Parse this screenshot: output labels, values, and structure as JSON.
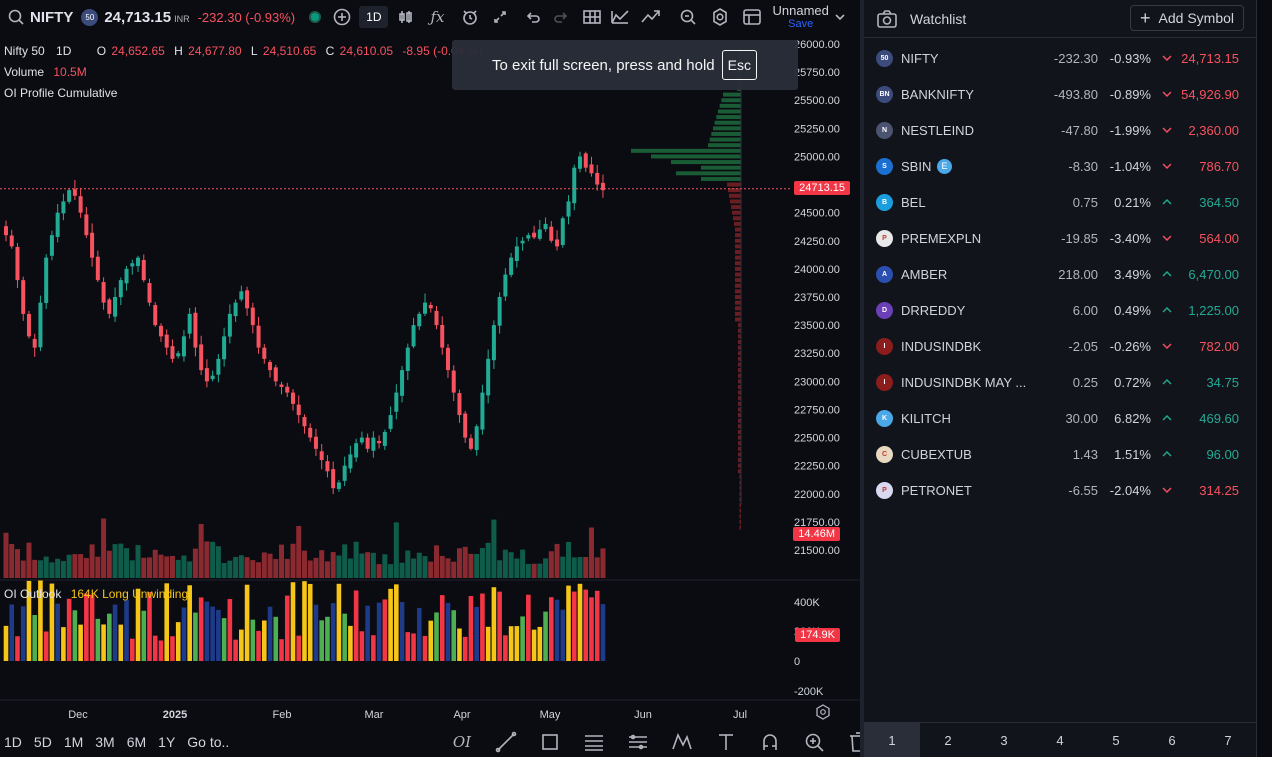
{
  "header": {
    "symbol": "NIFTY",
    "symbol_badge": "50",
    "price": "24,713.15",
    "currency": "INR",
    "change": "-232.30 (-0.93%)",
    "interval": "1D",
    "layout_name": "Unnamed",
    "save_label": "Save"
  },
  "legend": {
    "instrument": "Nifty 50",
    "interval": "1D",
    "o_label": "O",
    "o_value": "24,652.65",
    "h_label": "H",
    "h_value": "24,677.80",
    "l_label": "L",
    "l_value": "24,510.65",
    "c_label": "C",
    "c_value": "24,610.05",
    "change": "-8.95 (-0.04 %)",
    "volume_label": "Volume",
    "volume_value": "10.5M",
    "indicator": "OI Profile Cumulative"
  },
  "oi_outlook": {
    "label": "OI Outlook",
    "value": "164K Long Unwinding"
  },
  "toast": {
    "text": "To exit full screen, press and hold",
    "key": "Esc"
  },
  "price_tags": {
    "last": "24713.15",
    "volume": "14.46M",
    "oi": "174.9K"
  },
  "chart_data": {
    "type": "candlestick",
    "symbol": "Nifty 50",
    "interval": "1D",
    "x_ticks": [
      "Dec",
      "2025",
      "Feb",
      "Mar",
      "Apr",
      "May",
      "Jun",
      "Jul"
    ],
    "y_ticks": [
      "26000.00",
      "25750.00",
      "25500.00",
      "25250.00",
      "25000.00",
      "24750.00",
      "24500.00",
      "24250.00",
      "24000.00",
      "23750.00",
      "23500.00",
      "23250.00",
      "23000.00",
      "22750.00",
      "22500.00",
      "22250.00",
      "22000.00",
      "21750.00",
      "21500.00"
    ],
    "ylim": [
      21500,
      26000
    ],
    "last_price": 24713.15,
    "close_path": [
      24300,
      24200,
      23900,
      23600,
      23400,
      23300,
      23700,
      24100,
      24300,
      24500,
      24600,
      24700,
      24650,
      24500,
      24300,
      24100,
      23900,
      23700,
      23600,
      23750,
      23900,
      24000,
      24050,
      24100,
      23900,
      23700,
      23500,
      23400,
      23300,
      23200,
      23250,
      23400,
      23600,
      23300,
      23100,
      23000,
      23050,
      23200,
      23400,
      23600,
      23700,
      23800,
      23650,
      23500,
      23300,
      23200,
      23100,
      23000,
      22950,
      22900,
      22800,
      22700,
      22600,
      22500,
      22400,
      22300,
      22200,
      22050,
      22100,
      22250,
      22350,
      22450,
      22500,
      22400,
      22500,
      22450,
      22550,
      22700,
      22900,
      23100,
      23300,
      23500,
      23600,
      23700,
      23650,
      23500,
      23300,
      23100,
      22900,
      22700,
      22500,
      22400,
      22600,
      22900,
      23200,
      23500,
      23750,
      23950,
      24100,
      24200,
      24250,
      24300,
      24280,
      24350,
      24400,
      24250,
      24200,
      24450,
      24600,
      24900,
      25000,
      24900,
      24850,
      24750,
      24700
    ],
    "oi_axis_ticks": [
      "400K",
      "200K",
      "0",
      "-200K"
    ]
  },
  "periods": [
    "1D",
    "5D",
    "1M",
    "3M",
    "6M",
    "1Y",
    "Go to.."
  ],
  "watchlist": {
    "title": "Watchlist",
    "add_label": "Add Symbol",
    "items": [
      {
        "name": "NIFTY",
        "change": "-232.30",
        "pct": "-0.93%",
        "last": "24,713.15",
        "dir": "down",
        "logo": "50",
        "logo_color": "#3b4b7c"
      },
      {
        "name": "BANKNIFTY",
        "change": "-493.80",
        "pct": "-0.89%",
        "last": "54,926.90",
        "dir": "down",
        "logo": "BN",
        "logo_color": "#3b4b7c"
      },
      {
        "name": "NESTLEIND",
        "change": "-47.80",
        "pct": "-1.99%",
        "last": "2,360.00",
        "dir": "down",
        "logo": "N",
        "logo_color": "#4a5470"
      },
      {
        "name": "SBIN",
        "change": "-8.30",
        "pct": "-1.04%",
        "last": "786.70",
        "dir": "down",
        "logo": "S",
        "logo_color": "#1a6fd1",
        "badge": "E"
      },
      {
        "name": "BEL",
        "change": "0.75",
        "pct": "0.21%",
        "last": "364.50",
        "dir": "up",
        "logo": "B",
        "logo_color": "#1a9ee0"
      },
      {
        "name": "PREMEXPLN",
        "change": "-19.85",
        "pct": "-3.40%",
        "last": "564.00",
        "dir": "down",
        "logo": "P",
        "logo_color": "#e8e8e8"
      },
      {
        "name": "AMBER",
        "change": "218.00",
        "pct": "3.49%",
        "last": "6,470.00",
        "dir": "up",
        "logo": "A",
        "logo_color": "#2b4fb0"
      },
      {
        "name": "DRREDDY",
        "change": "6.00",
        "pct": "0.49%",
        "last": "1,225.00",
        "dir": "up",
        "logo": "D",
        "logo_color": "#6b3fb5"
      },
      {
        "name": "INDUSINDBK",
        "change": "-2.05",
        "pct": "-0.26%",
        "last": "782.00",
        "dir": "down",
        "logo": "I",
        "logo_color": "#8b1d1d"
      },
      {
        "name": "INDUSINDBK MAY ...",
        "change": "0.25",
        "pct": "0.72%",
        "last": "34.75",
        "dir": "up",
        "logo": "I",
        "logo_color": "#8b1d1d"
      },
      {
        "name": "KILITCH",
        "change": "30.00",
        "pct": "6.82%",
        "last": "469.60",
        "dir": "up",
        "logo": "K",
        "logo_color": "#4aa8e8"
      },
      {
        "name": "CUBEXTUB",
        "change": "1.43",
        "pct": "1.51%",
        "last": "96.00",
        "dir": "up",
        "logo": "C",
        "logo_color": "#e8d8c0"
      },
      {
        "name": "PETRONET",
        "change": "-6.55",
        "pct": "-2.04%",
        "last": "314.25",
        "dir": "down",
        "logo": "P",
        "logo_color": "#d8d8f0"
      }
    ],
    "tabs": [
      "1",
      "2",
      "3",
      "4",
      "5",
      "6",
      "7"
    ]
  },
  "colors": {
    "up": "#22ab94",
    "down": "#f7525f",
    "accent": "#2962ff",
    "bg": "#0b0c12"
  },
  "icons": [
    "search-icon",
    "plus-icon",
    "bar-style-icon",
    "fx-icon",
    "alert-icon",
    "replay-icon",
    "undo-icon",
    "redo-icon",
    "layout-icon",
    "compare-icon",
    "settings-icon",
    "camera-icon",
    "chevron-down-icon"
  ]
}
